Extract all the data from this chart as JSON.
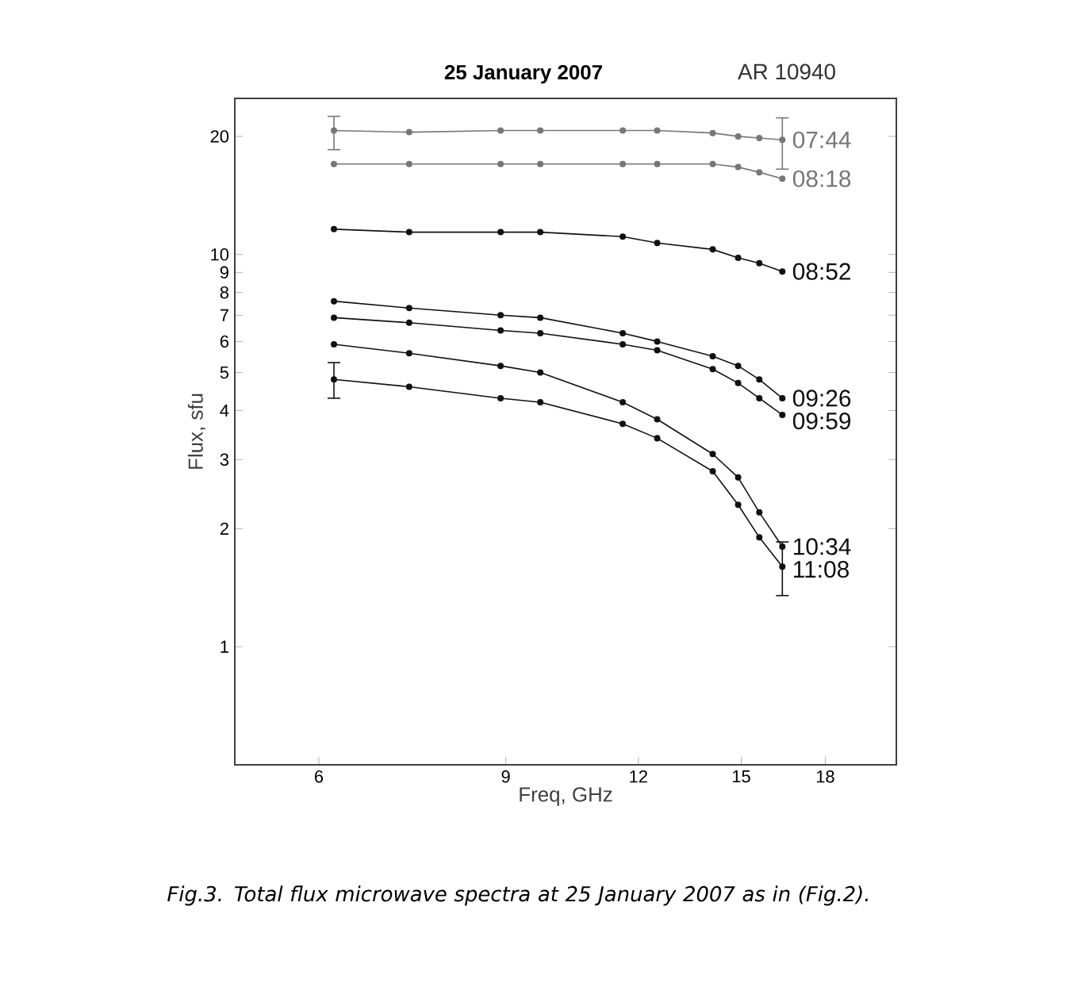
{
  "chart_data": {
    "type": "line",
    "title": "25 January 2007",
    "subtitle": "AR 10940",
    "xlabel": "Freq, GHz",
    "ylabel": "Flux, sfu",
    "annotations": [
      "Fig.3. Total flux microwave spectra at 25 January 2007 as in (Fig.2)."
    ],
    "log": "xy",
    "xlim": [
      5,
      21
    ],
    "ylim": [
      0.5,
      25
    ],
    "xticks": [
      6,
      9,
      12,
      15,
      18
    ],
    "yticks": [
      1,
      2,
      3,
      4,
      5,
      6,
      7,
      8,
      9,
      10,
      20
    ],
    "marker": "circle",
    "line_style": "solid",
    "grid": false,
    "legend": false,
    "x": [
      6.2,
      7.3,
      8.9,
      9.7,
      11.6,
      12.5,
      14.1,
      14.9,
      15.6,
      16.4
    ],
    "series": [
      {
        "name": "07:44",
        "color": "#777777",
        "values": [
          20.7,
          20.5,
          20.7,
          20.7,
          20.7,
          20.7,
          20.4,
          20.0,
          19.8,
          19.6
        ],
        "errors": [
          [
            18.5,
            22.5
          ],
          null,
          null,
          null,
          null,
          null,
          null,
          null,
          null,
          [
            16.5,
            22.3
          ]
        ]
      },
      {
        "name": "08:18",
        "color": "#777777",
        "values": [
          17.0,
          17.0,
          17.0,
          17.0,
          17.0,
          17.0,
          17.0,
          16.7,
          16.2,
          15.6
        ]
      },
      {
        "name": "08:52",
        "color": "#111111",
        "values": [
          11.6,
          11.4,
          11.4,
          11.4,
          11.1,
          10.7,
          10.3,
          9.8,
          9.5,
          9.05
        ]
      },
      {
        "name": "09:26",
        "color": "#111111",
        "values": [
          7.6,
          7.3,
          7.0,
          6.9,
          6.3,
          6.0,
          5.5,
          5.2,
          4.8,
          4.3
        ]
      },
      {
        "name": "09:59",
        "color": "#111111",
        "values": [
          6.9,
          6.7,
          6.4,
          6.3,
          5.9,
          5.7,
          5.1,
          4.7,
          4.3,
          3.9
        ]
      },
      {
        "name": "10:34",
        "color": "#111111",
        "values": [
          5.9,
          5.6,
          5.2,
          5.0,
          4.2,
          3.8,
          3.1,
          2.7,
          2.2,
          1.8
        ]
      },
      {
        "name": "11:08",
        "color": "#111111",
        "values": [
          4.8,
          4.6,
          4.3,
          4.2,
          3.7,
          3.4,
          2.8,
          2.3,
          1.9,
          1.6
        ],
        "errors": [
          [
            4.3,
            5.3
          ],
          null,
          null,
          null,
          null,
          null,
          null,
          null,
          null,
          [
            1.35,
            1.85
          ]
        ]
      }
    ]
  }
}
